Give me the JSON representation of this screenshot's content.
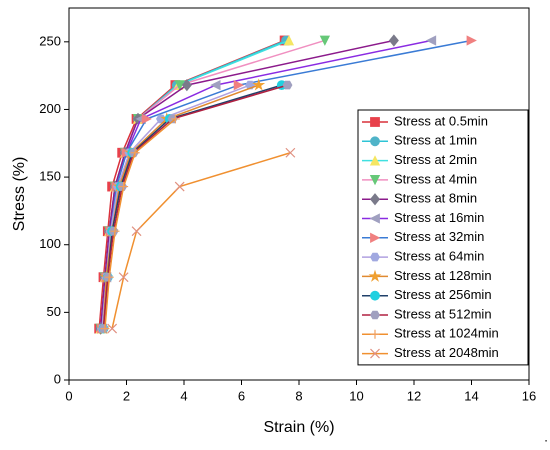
{
  "chart_data": {
    "type": "line",
    "x_label": "Strain (%)",
    "y_label": "Stress (%)",
    "annotation": ".",
    "xlim": [
      0,
      16
    ],
    "xticks": [
      0,
      2,
      4,
      6,
      8,
      10,
      12,
      14,
      16
    ],
    "ylim": [
      0,
      275
    ],
    "yticks": [
      0,
      50,
      100,
      150,
      200,
      250
    ],
    "legend": "right",
    "series": [
      {
        "name": "Stress at 0.5min",
        "color": "#d9303a",
        "marker_color": "#e8414b",
        "marker": "square",
        "x": [
          1.05,
          1.2,
          1.35,
          1.5,
          1.85,
          2.35,
          3.7,
          7.5
        ],
        "values": [
          38,
          76,
          110,
          143,
          168,
          193,
          218,
          251
        ]
      },
      {
        "name": "Stress at 1min",
        "color": "#2ec4d6",
        "marker_color": "#4fb3c8",
        "marker": "circle",
        "x": [
          1.1,
          1.25,
          1.4,
          1.6,
          1.95,
          2.4,
          3.75,
          7.55
        ],
        "values": [
          38,
          76,
          110,
          143,
          168,
          193,
          218,
          251
        ]
      },
      {
        "name": "Stress at 2min",
        "color": "#40e0e0",
        "marker_color": "#f5e663",
        "marker": "triangle-up",
        "x": [
          1.1,
          1.25,
          1.4,
          1.6,
          1.95,
          2.4,
          3.8,
          7.65
        ],
        "values": [
          38,
          76,
          110,
          143,
          168,
          193,
          218,
          251
        ]
      },
      {
        "name": "Stress at 4min",
        "color": "#f08fc0",
        "marker_color": "#66c878",
        "marker": "triangle-down",
        "x": [
          1.1,
          1.25,
          1.4,
          1.6,
          1.95,
          2.4,
          3.85,
          8.9
        ],
        "values": [
          38,
          76,
          110,
          143,
          168,
          193,
          218,
          251
        ]
      },
      {
        "name": "Stress at 8min",
        "color": "#8b1a8b",
        "marker_color": "#7a7a8a",
        "marker": "diamond",
        "x": [
          1.1,
          1.25,
          1.4,
          1.6,
          1.95,
          2.4,
          4.1,
          11.3
        ],
        "values": [
          38,
          76,
          110,
          143,
          168,
          193,
          218,
          251
        ]
      },
      {
        "name": "Stress at 16min",
        "color": "#8a2be2",
        "marker_color": "#a0a0c0",
        "marker": "triangle-left",
        "x": [
          1.15,
          1.3,
          1.45,
          1.65,
          2.0,
          2.5,
          5.1,
          12.6
        ],
        "values": [
          38,
          76,
          110,
          143,
          168,
          193,
          218,
          251
        ]
      },
      {
        "name": "Stress at 32min",
        "color": "#3a7bd5",
        "marker_color": "#f08080",
        "marker": "triangle-right",
        "x": [
          1.15,
          1.3,
          1.45,
          1.65,
          2.0,
          2.7,
          5.9,
          14.0
        ],
        "values": [
          38,
          76,
          110,
          143,
          168,
          193,
          218,
          251
        ]
      },
      {
        "name": "Stress at 64min",
        "color": "#b0a0e0",
        "marker_color": "#a0a8e0",
        "marker": "hexagon",
        "x": [
          1.15,
          1.3,
          1.45,
          1.7,
          2.1,
          3.2,
          6.3
        ],
        "values": [
          38,
          76,
          110,
          143,
          168,
          193,
          218
        ]
      },
      {
        "name": "Stress at 128min",
        "color": "#e08a30",
        "marker_color": "#f0a030",
        "marker": "star",
        "x": [
          1.2,
          1.3,
          1.5,
          1.75,
          2.15,
          3.4,
          6.6
        ],
        "values": [
          38,
          76,
          110,
          143,
          168,
          193,
          218
        ]
      },
      {
        "name": "Stress at 256min",
        "color": "#20406a",
        "marker_color": "#20d0e0",
        "marker": "circle",
        "x": [
          1.2,
          1.35,
          1.5,
          1.8,
          2.2,
          3.5,
          7.4
        ],
        "values": [
          38,
          76,
          110,
          143,
          168,
          193,
          218
        ]
      },
      {
        "name": "Stress at 512min",
        "color": "#b02040",
        "marker_color": "#a0a0c0",
        "marker": "hexagon",
        "x": [
          1.2,
          1.35,
          1.55,
          1.85,
          2.25,
          3.6,
          7.6
        ],
        "values": [
          38,
          76,
          110,
          143,
          168,
          193,
          218
        ]
      },
      {
        "name": "Stress at 1024min",
        "color": "#f09030",
        "marker_color": "#f0a060",
        "marker": "plus",
        "x": [
          1.25,
          1.4,
          1.6,
          1.9,
          2.3,
          3.7
        ],
        "values": [
          38,
          76,
          110,
          143,
          168,
          193
        ]
      },
      {
        "name": "Stress at 2048min",
        "color": "#f09030",
        "marker_color": "#e09080",
        "marker": "x",
        "x": [
          1.5,
          1.9,
          2.35,
          3.85,
          7.7
        ],
        "values": [
          38,
          76,
          110,
          143,
          168
        ]
      }
    ]
  }
}
